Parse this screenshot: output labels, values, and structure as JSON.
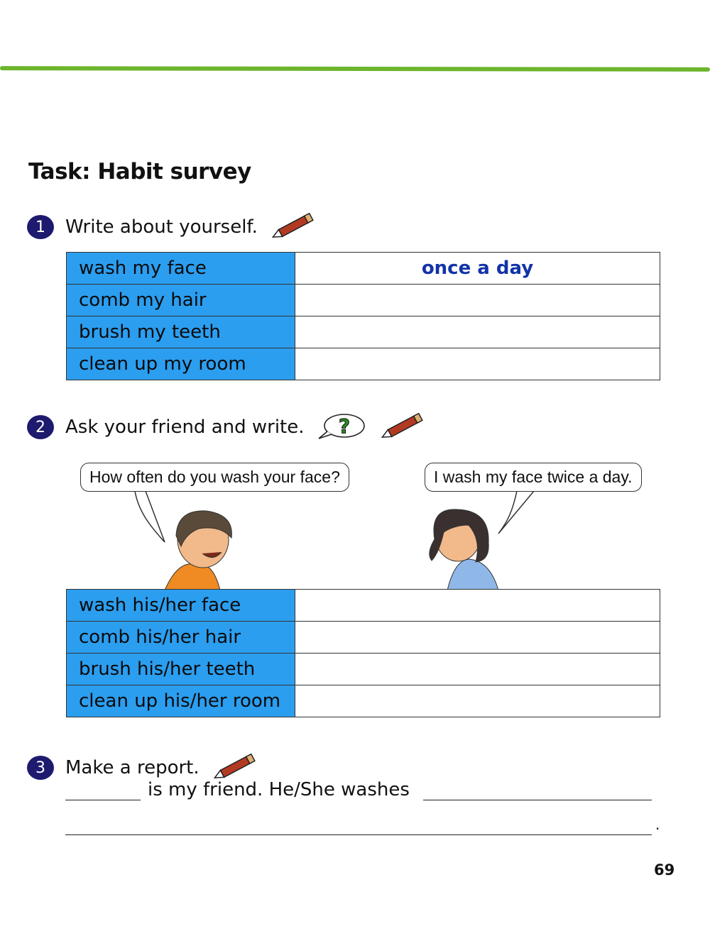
{
  "title": "Task: Habit survey",
  "step1": {
    "number": "1",
    "instruction": "Write about yourself.",
    "icon": "pencil-icon"
  },
  "table1": [
    {
      "activity": "wash my face",
      "answer": "once a day"
    },
    {
      "activity": "comb my hair",
      "answer": ""
    },
    {
      "activity": "brush my teeth",
      "answer": ""
    },
    {
      "activity": "clean up my room",
      "answer": ""
    }
  ],
  "step2": {
    "number": "2",
    "instruction": "Ask your friend and write.",
    "icons": [
      "question-bubble-icon",
      "pencil-icon"
    ]
  },
  "dialog": {
    "boy": "How often do you wash your face?",
    "girl": "I wash my face twice a day."
  },
  "table2": [
    {
      "activity": "wash his/her face",
      "answer": ""
    },
    {
      "activity": "comb his/her hair",
      "answer": ""
    },
    {
      "activity": "brush his/her teeth",
      "answer": ""
    },
    {
      "activity": "clean up his/her room",
      "answer": ""
    }
  ],
  "step3": {
    "number": "3",
    "instruction": "Make a report.",
    "sentence": "is my friend. He/She washes",
    "end": "."
  },
  "page_number": "69",
  "colors": {
    "accent_green": "#6cb52d",
    "cell_blue": "#2b9ef0",
    "answer_blue": "#1233a8",
    "number_badge": "#1e1a6e"
  }
}
